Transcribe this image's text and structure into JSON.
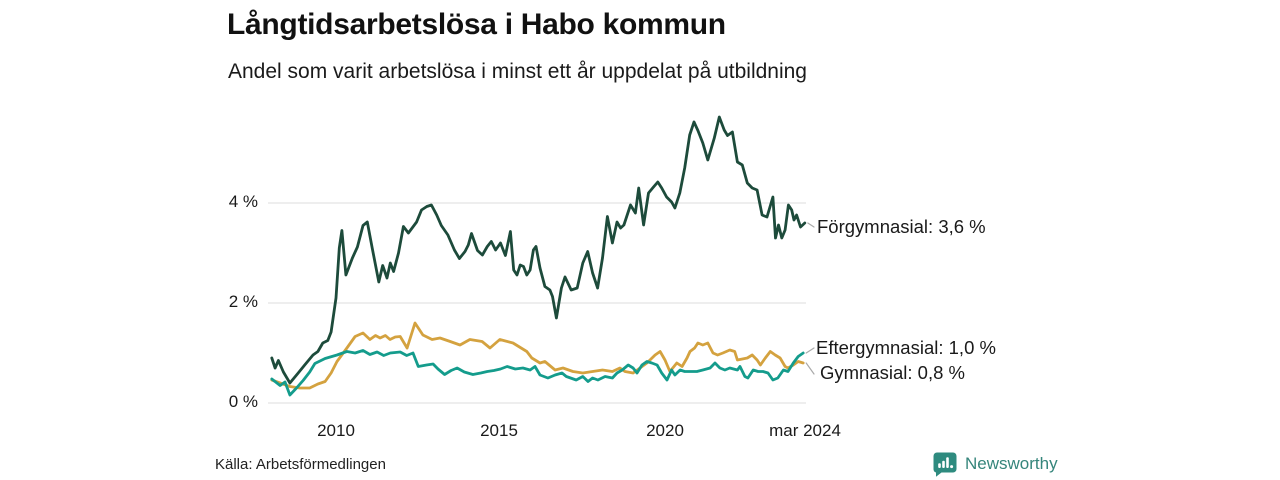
{
  "header": {
    "title": "Långtidsarbetslösa i Habo kommun",
    "subtitle": "Andel som varit arbetslösa i minst ett år uppdelat på utbildning"
  },
  "source_label": "Källa: Arbetsförmedlingen",
  "branding": {
    "wordmark": "Newsworthy",
    "logo_icon": "bar-chart-speech-bubble-icon",
    "color": "#2E8B7F"
  },
  "chart_data": {
    "type": "line",
    "title": "Långtidsarbetslösa i Habo kommun",
    "subtitle": "Andel som varit arbetslösa i minst ett år uppdelat på utbildning",
    "unit": "%",
    "grid": true,
    "legend_position": "end-of-line-labels-right",
    "x_axis": {
      "range_years": [
        2008.0,
        2024.3
      ],
      "ticks": [
        {
          "year": 2010,
          "label": "2010"
        },
        {
          "year": 2015,
          "label": "2015"
        },
        {
          "year": 2020,
          "label": "2020"
        },
        {
          "year": 2024.25,
          "label": "mar 2024"
        }
      ]
    },
    "y_axis": {
      "range": [
        0,
        5.9
      ],
      "gridlines": "horizontal",
      "gridline_color": "#dddddd",
      "ticks": [
        {
          "value": 0,
          "label": "0 %"
        },
        {
          "value": 2,
          "label": "2 %"
        },
        {
          "value": 4,
          "label": "4 %"
        }
      ]
    },
    "series": [
      {
        "name": "Förgymnasial",
        "end_label": "Förgymnasial: 3,6 %",
        "latest_value": 3.6,
        "color": "#1D4B3B",
        "points": [
          [
            2008.05,
            0.9
          ],
          [
            2008.15,
            0.7
          ],
          [
            2008.25,
            0.85
          ],
          [
            2008.4,
            0.62
          ],
          [
            2008.6,
            0.4
          ],
          [
            2008.85,
            0.6
          ],
          [
            2009.05,
            0.76
          ],
          [
            2009.3,
            0.96
          ],
          [
            2009.45,
            1.03
          ],
          [
            2009.6,
            1.2
          ],
          [
            2009.75,
            1.25
          ],
          [
            2009.85,
            1.42
          ],
          [
            2010.0,
            2.1
          ],
          [
            2010.1,
            3.1
          ],
          [
            2010.18,
            3.45
          ],
          [
            2010.3,
            2.56
          ],
          [
            2010.5,
            2.9
          ],
          [
            2010.65,
            3.12
          ],
          [
            2010.82,
            3.55
          ],
          [
            2010.95,
            3.62
          ],
          [
            2011.1,
            3.1
          ],
          [
            2011.3,
            2.42
          ],
          [
            2011.42,
            2.75
          ],
          [
            2011.55,
            2.5
          ],
          [
            2011.65,
            2.8
          ],
          [
            2011.75,
            2.63
          ],
          [
            2011.9,
            3.0
          ],
          [
            2012.05,
            3.53
          ],
          [
            2012.2,
            3.4
          ],
          [
            2012.45,
            3.62
          ],
          [
            2012.6,
            3.86
          ],
          [
            2012.76,
            3.93
          ],
          [
            2012.9,
            3.96
          ],
          [
            2013.06,
            3.76
          ],
          [
            2013.2,
            3.55
          ],
          [
            2013.4,
            3.36
          ],
          [
            2013.6,
            3.06
          ],
          [
            2013.75,
            2.89
          ],
          [
            2013.92,
            3.03
          ],
          [
            2014.02,
            3.16
          ],
          [
            2014.12,
            3.39
          ],
          [
            2014.3,
            3.05
          ],
          [
            2014.45,
            2.96
          ],
          [
            2014.6,
            3.13
          ],
          [
            2014.72,
            3.23
          ],
          [
            2014.85,
            3.06
          ],
          [
            2015.0,
            3.2
          ],
          [
            2015.15,
            2.95
          ],
          [
            2015.3,
            3.43
          ],
          [
            2015.4,
            2.66
          ],
          [
            2015.5,
            2.56
          ],
          [
            2015.6,
            2.76
          ],
          [
            2015.7,
            2.73
          ],
          [
            2015.8,
            2.56
          ],
          [
            2015.9,
            2.66
          ],
          [
            2016.0,
            3.06
          ],
          [
            2016.08,
            3.13
          ],
          [
            2016.2,
            2.7
          ],
          [
            2016.35,
            2.33
          ],
          [
            2016.5,
            2.26
          ],
          [
            2016.58,
            2.13
          ],
          [
            2016.7,
            1.7
          ],
          [
            2016.85,
            2.3
          ],
          [
            2016.96,
            2.52
          ],
          [
            2017.15,
            2.26
          ],
          [
            2017.33,
            2.3
          ],
          [
            2017.5,
            2.8
          ],
          [
            2017.65,
            3.03
          ],
          [
            2017.8,
            2.6
          ],
          [
            2017.95,
            2.3
          ],
          [
            2018.1,
            2.9
          ],
          [
            2018.25,
            3.73
          ],
          [
            2018.4,
            3.2
          ],
          [
            2018.54,
            3.62
          ],
          [
            2018.65,
            3.5
          ],
          [
            2018.75,
            3.56
          ],
          [
            2018.95,
            3.96
          ],
          [
            2019.1,
            3.8
          ],
          [
            2019.2,
            4.3
          ],
          [
            2019.35,
            3.56
          ],
          [
            2019.5,
            4.2
          ],
          [
            2019.65,
            4.32
          ],
          [
            2019.78,
            4.42
          ],
          [
            2019.9,
            4.3
          ],
          [
            2020.05,
            4.12
          ],
          [
            2020.2,
            4.02
          ],
          [
            2020.3,
            3.9
          ],
          [
            2020.45,
            4.2
          ],
          [
            2020.6,
            4.7
          ],
          [
            2020.75,
            5.36
          ],
          [
            2020.88,
            5.62
          ],
          [
            2021.0,
            5.45
          ],
          [
            2021.15,
            5.2
          ],
          [
            2021.3,
            4.86
          ],
          [
            2021.5,
            5.3
          ],
          [
            2021.65,
            5.72
          ],
          [
            2021.8,
            5.46
          ],
          [
            2021.9,
            5.35
          ],
          [
            2022.05,
            5.42
          ],
          [
            2022.2,
            4.82
          ],
          [
            2022.35,
            4.76
          ],
          [
            2022.5,
            4.4
          ],
          [
            2022.65,
            4.3
          ],
          [
            2022.8,
            4.26
          ],
          [
            2022.95,
            3.76
          ],
          [
            2023.1,
            3.72
          ],
          [
            2023.28,
            4.12
          ],
          [
            2023.36,
            3.3
          ],
          [
            2023.45,
            3.56
          ],
          [
            2023.55,
            3.3
          ],
          [
            2023.65,
            3.46
          ],
          [
            2023.75,
            3.96
          ],
          [
            2023.85,
            3.86
          ],
          [
            2023.92,
            3.66
          ],
          [
            2024.0,
            3.76
          ],
          [
            2024.12,
            3.52
          ],
          [
            2024.25,
            3.6
          ]
        ]
      },
      {
        "name": "Eftergymnasial",
        "end_label": "Eftergymnasial: 1,0 %",
        "latest_value": 1.0,
        "color": "#149C8C",
        "points": [
          [
            2008.05,
            0.48
          ],
          [
            2008.3,
            0.35
          ],
          [
            2008.45,
            0.42
          ],
          [
            2008.6,
            0.16
          ],
          [
            2008.8,
            0.3
          ],
          [
            2009.0,
            0.45
          ],
          [
            2009.2,
            0.62
          ],
          [
            2009.36,
            0.79
          ],
          [
            2009.67,
            0.89
          ],
          [
            2010.03,
            0.96
          ],
          [
            2010.33,
            1.03
          ],
          [
            2010.58,
            1.0
          ],
          [
            2010.82,
            1.05
          ],
          [
            2011.03,
            0.97
          ],
          [
            2011.25,
            1.02
          ],
          [
            2011.45,
            0.95
          ],
          [
            2011.65,
            1.0
          ],
          [
            2011.95,
            1.02
          ],
          [
            2012.15,
            0.95
          ],
          [
            2012.34,
            1.0
          ],
          [
            2012.5,
            0.73
          ],
          [
            2012.75,
            0.76
          ],
          [
            2012.95,
            0.78
          ],
          [
            2013.1,
            0.68
          ],
          [
            2013.3,
            0.57
          ],
          [
            2013.5,
            0.65
          ],
          [
            2013.68,
            0.7
          ],
          [
            2013.9,
            0.62
          ],
          [
            2014.16,
            0.57
          ],
          [
            2014.4,
            0.6
          ],
          [
            2014.6,
            0.63
          ],
          [
            2014.8,
            0.65
          ],
          [
            2015.0,
            0.68
          ],
          [
            2015.2,
            0.73
          ],
          [
            2015.45,
            0.68
          ],
          [
            2015.68,
            0.7
          ],
          [
            2015.9,
            0.66
          ],
          [
            2016.05,
            0.73
          ],
          [
            2016.2,
            0.56
          ],
          [
            2016.44,
            0.5
          ],
          [
            2016.66,
            0.56
          ],
          [
            2016.87,
            0.6
          ],
          [
            2017.0,
            0.53
          ],
          [
            2017.3,
            0.46
          ],
          [
            2017.5,
            0.53
          ],
          [
            2017.66,
            0.43
          ],
          [
            2017.8,
            0.5
          ],
          [
            2017.96,
            0.46
          ],
          [
            2018.18,
            0.53
          ],
          [
            2018.4,
            0.5
          ],
          [
            2018.54,
            0.6
          ],
          [
            2018.7,
            0.66
          ],
          [
            2018.88,
            0.76
          ],
          [
            2019.03,
            0.7
          ],
          [
            2019.15,
            0.6
          ],
          [
            2019.3,
            0.76
          ],
          [
            2019.45,
            0.83
          ],
          [
            2019.6,
            0.8
          ],
          [
            2019.76,
            0.76
          ],
          [
            2019.9,
            0.6
          ],
          [
            2020.06,
            0.46
          ],
          [
            2020.2,
            0.66
          ],
          [
            2020.3,
            0.56
          ],
          [
            2020.46,
            0.66
          ],
          [
            2020.6,
            0.63
          ],
          [
            2020.97,
            0.63
          ],
          [
            2021.15,
            0.66
          ],
          [
            2021.37,
            0.7
          ],
          [
            2021.52,
            0.8
          ],
          [
            2021.67,
            0.7
          ],
          [
            2021.82,
            0.66
          ],
          [
            2021.97,
            0.7
          ],
          [
            2022.2,
            0.66
          ],
          [
            2022.28,
            0.73
          ],
          [
            2022.43,
            0.53
          ],
          [
            2022.52,
            0.5
          ],
          [
            2022.68,
            0.66
          ],
          [
            2022.83,
            0.63
          ],
          [
            2022.98,
            0.63
          ],
          [
            2023.13,
            0.6
          ],
          [
            2023.28,
            0.46
          ],
          [
            2023.43,
            0.5
          ],
          [
            2023.6,
            0.66
          ],
          [
            2023.74,
            0.63
          ],
          [
            2023.9,
            0.8
          ],
          [
            2024.05,
            0.93
          ],
          [
            2024.2,
            1.0
          ]
        ]
      },
      {
        "name": "Gymnasial",
        "end_label": "Gymnasial: 0,8 %",
        "latest_value": 0.8,
        "color": "#D4A23F",
        "points": [
          [
            2008.05,
            0.46
          ],
          [
            2008.3,
            0.4
          ],
          [
            2008.6,
            0.33
          ],
          [
            2008.9,
            0.3
          ],
          [
            2009.2,
            0.3
          ],
          [
            2009.45,
            0.38
          ],
          [
            2009.67,
            0.43
          ],
          [
            2009.85,
            0.6
          ],
          [
            2010.03,
            0.83
          ],
          [
            2010.33,
            1.1
          ],
          [
            2010.58,
            1.33
          ],
          [
            2010.82,
            1.4
          ],
          [
            2011.03,
            1.27
          ],
          [
            2011.2,
            1.35
          ],
          [
            2011.34,
            1.3
          ],
          [
            2011.5,
            1.35
          ],
          [
            2011.64,
            1.27
          ],
          [
            2011.8,
            1.32
          ],
          [
            2011.95,
            1.33
          ],
          [
            2012.16,
            1.1
          ],
          [
            2012.4,
            1.6
          ],
          [
            2012.64,
            1.36
          ],
          [
            2012.92,
            1.27
          ],
          [
            2013.16,
            1.3
          ],
          [
            2013.47,
            1.23
          ],
          [
            2013.77,
            1.16
          ],
          [
            2014.07,
            1.27
          ],
          [
            2014.44,
            1.23
          ],
          [
            2014.68,
            1.1
          ],
          [
            2014.98,
            1.27
          ],
          [
            2015.38,
            1.2
          ],
          [
            2015.8,
            1.03
          ],
          [
            2015.95,
            0.9
          ],
          [
            2016.2,
            0.8
          ],
          [
            2016.35,
            0.83
          ],
          [
            2016.66,
            0.66
          ],
          [
            2016.9,
            0.7
          ],
          [
            2017.2,
            0.63
          ],
          [
            2017.5,
            0.6
          ],
          [
            2017.8,
            0.63
          ],
          [
            2018.1,
            0.66
          ],
          [
            2018.4,
            0.63
          ],
          [
            2018.63,
            0.7
          ],
          [
            2018.78,
            0.63
          ],
          [
            2019.03,
            0.6
          ],
          [
            2019.24,
            0.7
          ],
          [
            2019.45,
            0.8
          ],
          [
            2019.7,
            0.96
          ],
          [
            2019.85,
            1.03
          ],
          [
            2020.0,
            0.86
          ],
          [
            2020.15,
            0.63
          ],
          [
            2020.36,
            0.8
          ],
          [
            2020.52,
            0.73
          ],
          [
            2020.67,
            0.9
          ],
          [
            2020.76,
            1.03
          ],
          [
            2020.9,
            1.1
          ],
          [
            2021.0,
            1.2
          ],
          [
            2021.15,
            1.16
          ],
          [
            2021.3,
            1.2
          ],
          [
            2021.46,
            1.0
          ],
          [
            2021.6,
            0.96
          ],
          [
            2021.76,
            1.0
          ],
          [
            2021.97,
            1.06
          ],
          [
            2022.12,
            1.03
          ],
          [
            2022.2,
            0.86
          ],
          [
            2022.5,
            0.9
          ],
          [
            2022.65,
            0.96
          ],
          [
            2022.8,
            0.86
          ],
          [
            2022.9,
            0.76
          ],
          [
            2023.05,
            0.9
          ],
          [
            2023.2,
            1.03
          ],
          [
            2023.35,
            0.96
          ],
          [
            2023.5,
            0.9
          ],
          [
            2023.65,
            0.73
          ],
          [
            2023.74,
            0.7
          ],
          [
            2023.9,
            0.76
          ],
          [
            2024.05,
            0.83
          ],
          [
            2024.2,
            0.8
          ]
        ]
      }
    ]
  }
}
